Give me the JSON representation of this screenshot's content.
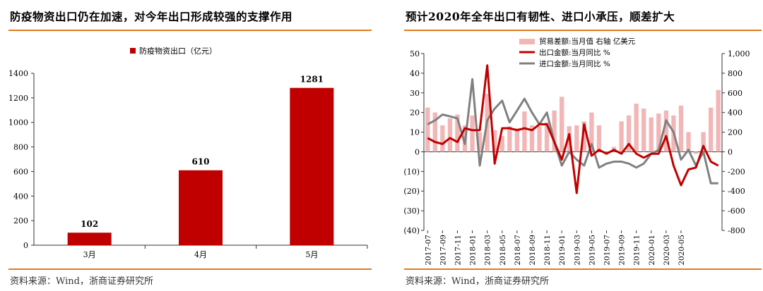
{
  "colors": {
    "rule": "#e07a20",
    "bar_red": "#c00000",
    "bar_pink": "#f2b6b6",
    "line_red": "#c00000",
    "line_gray": "#808080"
  },
  "left": {
    "title": "防疫物资出口仍在加速，对今年出口形成较强的支撑作用",
    "source": "资料来源：Wind，浙商证券研究所"
  },
  "right": {
    "title": "预计2020年全年出口有韧性、进口小承压，顺差扩大",
    "source": "资料来源：Wind，浙商证券研究所"
  },
  "chart_data": [
    {
      "type": "bar",
      "categories": [
        "3月",
        "4月",
        "5月"
      ],
      "series": [
        {
          "name": "防疫物资出口（亿元）",
          "values": [
            102,
            610,
            1281
          ]
        }
      ],
      "data_labels": [
        "102",
        "610",
        "1281"
      ],
      "ylim": [
        0,
        1400
      ],
      "yticks": [
        "0",
        "200",
        "400",
        "600",
        "800",
        "1000",
        "1200",
        "1400"
      ],
      "legend": "top-center",
      "grid": false
    },
    {
      "type": "bar+line",
      "x_labels": [
        "2017-07",
        "2017-09",
        "2017-11",
        "2018-01",
        "2018-03",
        "2018-05",
        "2018-07",
        "2018-09",
        "2018-11",
        "2019-01",
        "2019-03",
        "2019-05",
        "2019-07",
        "2019-09",
        "2019-11",
        "2020-01",
        "2020-03",
        "2020-05"
      ],
      "series": [
        {
          "name": "贸易差额:当月值 右轴 亿美元",
          "type": "bar",
          "axis": "right",
          "values": [
            450,
            400,
            270,
            340,
            380,
            270,
            370,
            200,
            590,
            220,
            160,
            260,
            240,
            410,
            270,
            260,
            300,
            420,
            560,
            260,
            270,
            310,
            400,
            270,
            -10,
            50,
            310,
            370,
            490,
            440,
            350,
            390,
            420,
            370,
            470,
            200,
            -20,
            200,
            450,
            630
          ]
        },
        {
          "name": "出口金额:当月同比 %",
          "type": "line",
          "axis": "left",
          "values": [
            7,
            5,
            4,
            7,
            5,
            12,
            11,
            11,
            44,
            -6,
            12,
            12,
            11,
            12,
            11,
            14,
            14,
            5,
            -4,
            9,
            -21,
            14,
            -2,
            1,
            -1,
            1,
            -1,
            4,
            -1,
            -3,
            -1,
            -1,
            8,
            -7,
            -17,
            -9,
            -8,
            3,
            -5,
            -7
          ]
        },
        {
          "name": "进口金额:当月同比 %",
          "type": "line",
          "axis": "left",
          "values": [
            14,
            16,
            19,
            18,
            17,
            4,
            37,
            -7,
            16,
            22,
            26,
            15,
            21,
            27,
            20,
            14,
            20,
            5,
            -7,
            0,
            -4,
            -7,
            4,
            -8,
            -6,
            -5,
            -5,
            -6,
            -8,
            -6,
            -1,
            1,
            16,
            10,
            -4,
            1,
            -7,
            0,
            -16,
            -16
          ]
        }
      ],
      "ylim_left": [
        -40,
        50
      ],
      "ylim_right": [
        -800,
        1000
      ],
      "yticks_left": [
        "(40)",
        "(30)",
        "(20)",
        "(10)",
        "0",
        "10",
        "20",
        "30",
        "40",
        "50"
      ],
      "yticks_right": [
        "-800",
        "-600",
        "-400",
        "-200",
        "0",
        "200",
        "400",
        "600",
        "800",
        "1,000"
      ],
      "legend": "top-left",
      "grid": false
    }
  ]
}
